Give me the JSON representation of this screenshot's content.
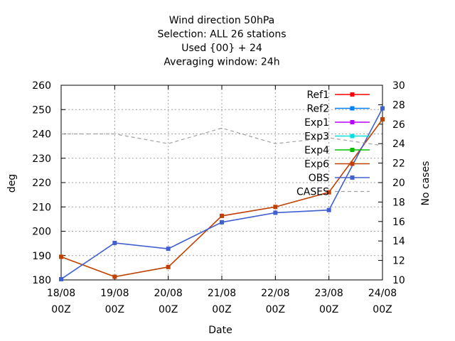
{
  "chart_data": {
    "type": "line",
    "title_lines": [
      "Wind direction 50hPa",
      "Selection: ALL      26 stations",
      "Used {00} + 24",
      "Averaging window: 24h"
    ],
    "xlabel": "Date",
    "ylabel": "deg",
    "y2label": "No cases",
    "x_ticks": [
      {
        "line1": "18/08",
        "line2": "00Z"
      },
      {
        "line1": "19/08",
        "line2": "00Z"
      },
      {
        "line1": "20/08",
        "line2": "00Z"
      },
      {
        "line1": "21/08",
        "line2": "00Z"
      },
      {
        "line1": "22/08",
        "line2": "00Z"
      },
      {
        "line1": "23/08",
        "line2": "00Z"
      },
      {
        "line1": "24/08",
        "line2": "00Z"
      }
    ],
    "x_range": [
      0,
      6
    ],
    "ylim": [
      180,
      260
    ],
    "y_ticks": [
      180,
      190,
      200,
      210,
      220,
      230,
      240,
      250,
      260
    ],
    "y2lim": [
      10,
      30
    ],
    "y2_ticks": [
      10,
      12,
      14,
      16,
      18,
      20,
      22,
      24,
      26,
      28,
      30
    ],
    "grid": true,
    "legend_position": "top-right",
    "series": [
      {
        "name": "Ref1",
        "color": "#ff0000",
        "axis": "y1",
        "x": [],
        "values": []
      },
      {
        "name": "Ref2",
        "color": "#0080ff",
        "axis": "y1",
        "x": [],
        "values": []
      },
      {
        "name": "Exp1",
        "color": "#c000ff",
        "axis": "y1",
        "x": [],
        "values": []
      },
      {
        "name": "Exp3",
        "color": "#00e0e0",
        "axis": "y1",
        "x": [],
        "values": []
      },
      {
        "name": "Exp4",
        "color": "#00c000",
        "axis": "y1",
        "x": [],
        "values": []
      },
      {
        "name": "Exp6",
        "color": "#c04000",
        "axis": "y1",
        "x": [
          0,
          1,
          2,
          3,
          4,
          5,
          6
        ],
        "values": [
          189.5,
          181.3,
          185.3,
          206.3,
          210,
          216,
          246
        ]
      },
      {
        "name": "OBS",
        "color": "#4060d0",
        "axis": "y1",
        "x": [
          0,
          1,
          2,
          3,
          4,
          5,
          6
        ],
        "values": [
          180.3,
          195.2,
          192.8,
          203.7,
          207.6,
          208.7,
          250.5
        ]
      },
      {
        "name": "CASES",
        "color": "#a0a0a0",
        "axis": "y2",
        "dashed": true,
        "x": [
          0,
          1,
          2,
          3,
          4,
          5,
          6
        ],
        "values": [
          25,
          25,
          24,
          25.6,
          24,
          24.6,
          23.8
        ]
      }
    ]
  }
}
